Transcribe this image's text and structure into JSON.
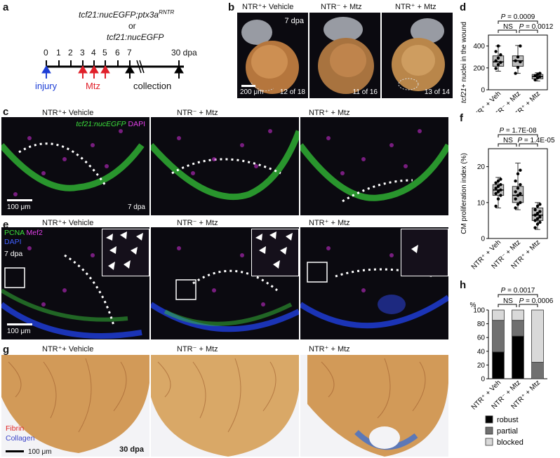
{
  "panel_letters": [
    "a",
    "b",
    "c",
    "d",
    "e",
    "f",
    "g",
    "h"
  ],
  "panel_a": {
    "genotype_line1": "tcf21:nucEGFP;ptx3a",
    "genotype_sup": "RNTR",
    "genotype_or": "or",
    "genotype_line2": "tcf21:nucEGFP",
    "ticks": [
      "0",
      "1",
      "2",
      "3",
      "4",
      "5",
      "6",
      "7",
      "30 dpa"
    ],
    "injury_label": "injury",
    "mtz_label": "Mtz",
    "collection_label": "collection",
    "colors": {
      "injury": "#1e3fd6",
      "mtz": "#e0202a",
      "collection": "#000000"
    }
  },
  "panel_b": {
    "images": [
      {
        "title": "NTR⁺+ Vehicle",
        "count": "12 of 18",
        "stage": "7 dpa",
        "scale": "200 μm"
      },
      {
        "title": "NTR⁻ + Mtz",
        "count": "11 of 16"
      },
      {
        "title": "NTR⁺ + Mtz",
        "count": "13 of 14"
      }
    ]
  },
  "panel_c": {
    "titles": [
      "NTR⁺+ Vehicle",
      "NTR⁻ + Mtz",
      "NTR⁺ + Mtz"
    ],
    "legend_green": "tcf21:nucEGFP",
    "legend_magenta": "DAPI",
    "scale": "100 μm",
    "stage": "7 dpa"
  },
  "panel_e": {
    "titles": [
      "NTR⁺+ Vehicle",
      "NTR⁻ + Mtz",
      "NTR⁺ + Mtz"
    ],
    "legend_pcna": "PCNA",
    "legend_mef2": "Mef2",
    "legend_dapi": "DAPI",
    "stage": "7 dpa",
    "scale": "100 μm"
  },
  "panel_g": {
    "titles": [
      "NTR⁺+ Vehicle",
      "NTR⁻ + Mtz",
      "NTR⁺ + Mtz"
    ],
    "legend_fibrin": "Fibrin",
    "legend_collagen": "Collagen",
    "stage": "30 dpa",
    "scale": "100 μm"
  },
  "chart_data": [
    {
      "panel": "d",
      "type": "box",
      "ylabel": "tcf21+ nuclei in the wound",
      "ylim": [
        0,
        500
      ],
      "yticks": [
        "0",
        "200",
        "400"
      ],
      "categories": [
        "NTR⁺ + Veh",
        "NTR⁻ + Mtz",
        "NTR⁺ + Mtz"
      ],
      "boxes": [
        {
          "min": 170,
          "q1": 215,
          "median": 255,
          "q3": 310,
          "max": 400
        },
        {
          "min": 150,
          "q1": 215,
          "median": 265,
          "q3": 310,
          "max": 405
        },
        {
          "min": 80,
          "q1": 100,
          "median": 120,
          "q3": 140,
          "max": 155
        }
      ],
      "points": [
        [
          195,
          230,
          250,
          265,
          290,
          320,
          350,
          400
        ],
        [
          150,
          205,
          255,
          265,
          300,
          400
        ],
        [
          90,
          110,
          120,
          130,
          140,
          150
        ]
      ],
      "comparisons": [
        {
          "text": "P = 0.0009",
          "italic_p": true
        },
        {
          "text": "NS"
        },
        {
          "text": "P = 0.0012",
          "italic_p": true
        }
      ]
    },
    {
      "panel": "f",
      "type": "box",
      "ylabel": "CM proliferation index (%)",
      "ylim": [
        0,
        25
      ],
      "yticks": [
        "0",
        "10",
        "20"
      ],
      "categories": [
        "NTR⁺ + Veh",
        "NTR⁻ + Mtz",
        "NTR⁺ + Mtz"
      ],
      "boxes": [
        {
          "min": 8.5,
          "q1": 12,
          "median": 13.5,
          "q3": 15,
          "max": 17
        },
        {
          "min": 8,
          "q1": 10,
          "median": 12,
          "q3": 14.5,
          "max": 21
        },
        {
          "min": 2.5,
          "q1": 5,
          "median": 6.5,
          "q3": 8.5,
          "max": 10
        }
      ],
      "points": [
        [
          9,
          11,
          12,
          12.5,
          13,
          13.5,
          14,
          14.5,
          15,
          15.5,
          16,
          16.5
        ],
        [
          8.5,
          9.5,
          10,
          11,
          12,
          12.5,
          13,
          14,
          15,
          16,
          18,
          19
        ],
        [
          3,
          4,
          4.5,
          5,
          5.5,
          6,
          6.5,
          7,
          7.5,
          8,
          9,
          9.5
        ]
      ],
      "comparisons": [
        {
          "text": "P = 1.7E-08",
          "italic_p": true
        },
        {
          "text": "NS"
        },
        {
          "text": "P = 1.4E-05",
          "italic_p": true
        }
      ]
    },
    {
      "panel": "h",
      "type": "stacked-bar",
      "ylabel": "%",
      "ylim": [
        0,
        100
      ],
      "yticks": [
        "0",
        "20",
        "40",
        "60",
        "80",
        "100"
      ],
      "categories": [
        "NTR⁺ + Veh",
        "NTR⁻ + Mtz",
        "NTR⁺ + Mtz"
      ],
      "series": [
        {
          "name": "robust",
          "values": [
            39,
            62,
            0
          ],
          "color": "#000000"
        },
        {
          "name": "partial",
          "values": [
            46,
            23,
            24
          ],
          "color": "#707070"
        },
        {
          "name": "blocked",
          "values": [
            15,
            15,
            76
          ],
          "color": "#d9d9d9"
        }
      ],
      "comparisons": [
        {
          "text": "P = 0.0017",
          "italic_p": true
        },
        {
          "text": "NS"
        },
        {
          "text": "P = 0.0006",
          "italic_p": true
        }
      ]
    }
  ]
}
